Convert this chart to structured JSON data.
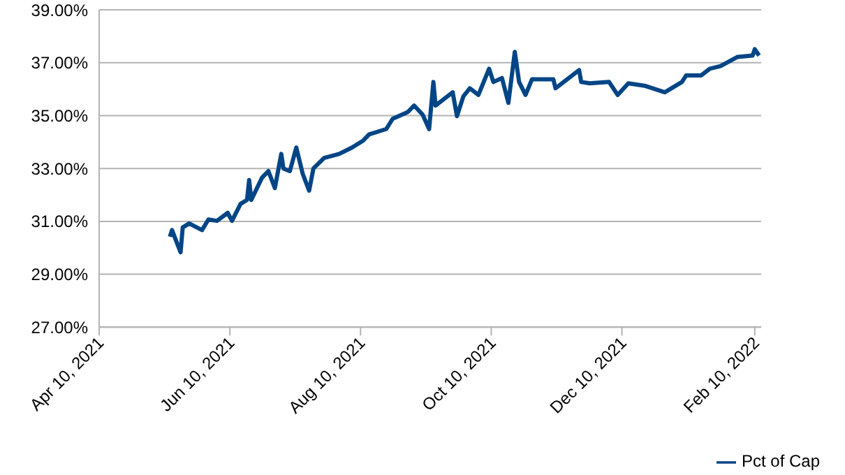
{
  "chart_data": {
    "type": "line",
    "x": [
      "2021-05-13",
      "2021-05-14",
      "2021-05-18",
      "2021-05-19",
      "2021-05-22",
      "2021-05-28",
      "2021-05-31",
      "2021-06-04",
      "2021-06-09",
      "2021-06-11",
      "2021-06-15",
      "2021-06-18",
      "2021-06-19",
      "2021-06-20",
      "2021-06-25",
      "2021-06-28",
      "2021-07-01",
      "2021-07-04",
      "2021-07-05",
      "2021-07-08",
      "2021-07-11",
      "2021-07-14",
      "2021-07-17",
      "2021-07-19",
      "2021-07-24",
      "2021-07-31",
      "2021-08-06",
      "2021-08-11",
      "2021-08-14",
      "2021-08-22",
      "2021-08-25",
      "2021-09-01",
      "2021-09-04",
      "2021-09-08",
      "2021-09-11",
      "2021-09-13",
      "2021-09-14",
      "2021-09-22",
      "2021-09-24",
      "2021-09-27",
      "2021-09-30",
      "2021-10-04",
      "2021-10-09",
      "2021-10-11",
      "2021-10-15",
      "2021-10-18",
      "2021-10-21",
      "2021-10-23",
      "2021-10-26",
      "2021-10-29",
      "2021-11-08",
      "2021-11-09",
      "2021-11-20",
      "2021-11-21",
      "2021-11-25",
      "2021-12-04",
      "2021-12-08",
      "2021-12-13",
      "2021-12-21",
      "2021-12-30",
      "2022-01-07",
      "2022-01-09",
      "2022-01-16",
      "2022-01-20",
      "2022-01-25",
      "2022-02-02",
      "2022-02-09",
      "2022-02-10",
      "2022-02-12"
    ],
    "series": [
      {
        "name": "Pct of Cap",
        "color": "#004586",
        "values": [
          30.42,
          30.67,
          29.83,
          30.77,
          30.92,
          30.67,
          31.07,
          31.02,
          31.32,
          31.02,
          31.66,
          31.81,
          32.56,
          31.81,
          32.65,
          32.9,
          32.26,
          33.55,
          33.0,
          32.9,
          33.79,
          32.8,
          32.16,
          33.0,
          33.4,
          33.55,
          33.79,
          34.04,
          34.29,
          34.49,
          34.88,
          35.13,
          35.38,
          35.03,
          34.49,
          36.27,
          35.38,
          35.88,
          34.98,
          35.73,
          36.03,
          35.78,
          36.77,
          36.27,
          36.42,
          35.48,
          37.41,
          36.27,
          35.78,
          36.37,
          36.37,
          36.03,
          36.72,
          36.27,
          36.22,
          36.27,
          35.78,
          36.22,
          36.12,
          35.88,
          36.27,
          36.52,
          36.52,
          36.77,
          36.87,
          37.22,
          37.27,
          37.51,
          37.27
        ]
      }
    ],
    "xlim": [
      "2021-04-10",
      "2022-02-13"
    ],
    "xticks": [
      {
        "value": "2021-04-10",
        "label": "Apr 10, 2021"
      },
      {
        "value": "2021-06-10",
        "label": "Jun 10, 2021"
      },
      {
        "value": "2021-08-10",
        "label": "Aug 10, 2021"
      },
      {
        "value": "2021-10-10",
        "label": "Oct 10, 2021"
      },
      {
        "value": "2021-12-10",
        "label": "Dec 10, 2021"
      },
      {
        "value": "2022-02-10",
        "label": "Feb 10, 2022"
      }
    ],
    "ylim": [
      27,
      39
    ],
    "yticks": [
      {
        "value": 27,
        "label": "27.00%"
      },
      {
        "value": 29,
        "label": "29.00%"
      },
      {
        "value": 31,
        "label": "31.00%"
      },
      {
        "value": 33,
        "label": "33.00%"
      },
      {
        "value": 35,
        "label": "35.00%"
      },
      {
        "value": 37,
        "label": "37.00%"
      },
      {
        "value": 39,
        "label": "39.00%"
      }
    ],
    "grid": "y",
    "legend": "bottom right",
    "marker": "none",
    "line_style": "solid"
  }
}
